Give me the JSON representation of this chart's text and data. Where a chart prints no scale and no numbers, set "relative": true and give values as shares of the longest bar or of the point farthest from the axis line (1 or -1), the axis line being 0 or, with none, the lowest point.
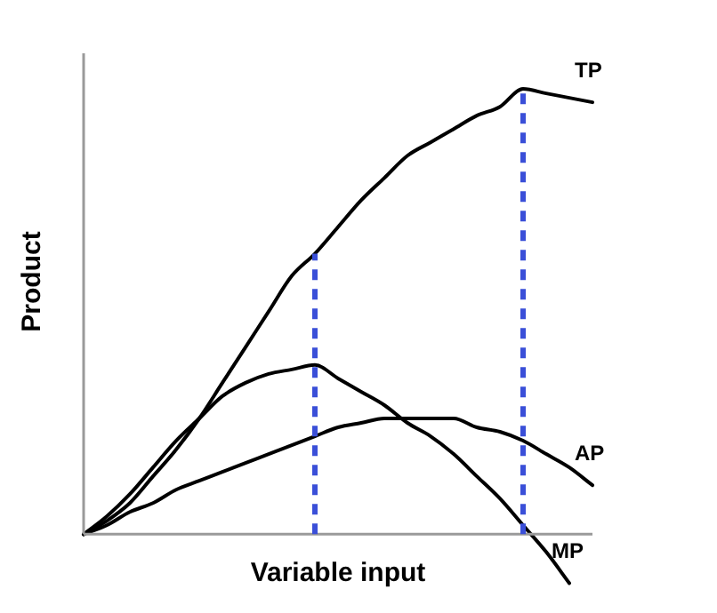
{
  "chart_data": {
    "type": "line",
    "relative": true,
    "xlabel": "Variable input",
    "ylabel": "Product",
    "categories": [
      null,
      null,
      null,
      null,
      null,
      null,
      null,
      null,
      null,
      null,
      null,
      null,
      null,
      null,
      null,
      null,
      null,
      null,
      null,
      null,
      null,
      null,
      null
    ],
    "series": [
      {
        "name": "TP",
        "color": "#000000",
        "values": [
          0,
          0.03,
          0.07,
          0.13,
          0.19,
          0.26,
          0.34,
          0.42,
          0.5,
          0.58,
          0.63,
          0.69,
          0.75,
          0.8,
          0.85,
          0.88,
          0.91,
          0.94,
          0.96,
          1,
          0.99,
          0.98,
          0.97
        ]
      },
      {
        "name": "AP",
        "color": "#000000",
        "values": [
          0,
          0.02,
          0.05,
          0.07,
          0.1,
          0.12,
          0.14,
          0.16,
          0.18,
          0.2,
          0.22,
          0.24,
          0.25,
          0.26,
          0.26,
          0.26,
          0.26,
          0.24,
          0.23,
          0.21,
          0.18,
          0.15,
          0.11
        ]
      },
      {
        "name": "MP",
        "color": "#000000",
        "values": [
          0,
          0.04,
          0.09,
          0.15,
          0.21,
          0.26,
          0.31,
          0.34,
          0.36,
          0.37,
          0.38,
          0.35,
          0.32,
          0.29,
          0.25,
          0.22,
          0.18,
          0.13,
          0.08,
          0.02,
          -0.04,
          -0.11,
          null
        ]
      }
    ],
    "marker": "none",
    "line_style": "solid",
    "legend": false
  }
}
